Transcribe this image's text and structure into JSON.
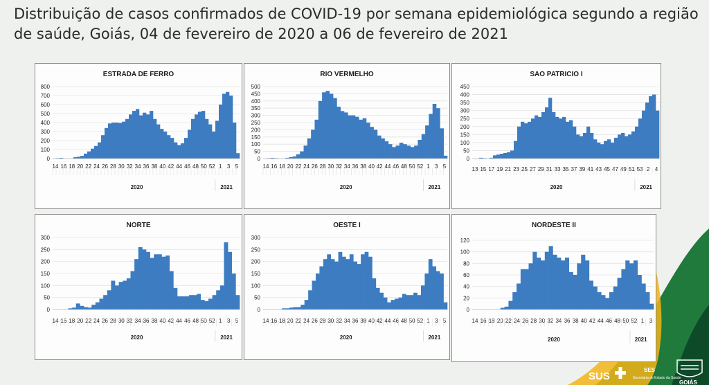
{
  "title": "Distribuição de casos confirmados de COVID-19 por semana epidemiológica segundo a região de saúde, Goiás, 04 de fevereiro de 2020 a 06 de fevereiro de 2021",
  "colors": {
    "bar": "#3d7cc1",
    "grid": "#e3e3e3",
    "axis": "#bdbdbd",
    "text": "#1e1e1e",
    "gold": "#f2b418",
    "green": "#1f7a3c",
    "darkgreen": "#0d4a28"
  },
  "footer": {
    "sus": "SUS",
    "ses": "SES",
    "ses_sub": "Secretaria de Estado da Saúde",
    "gov": "GOIÁS"
  },
  "chart_data": [
    {
      "type": "bar",
      "title": "ESTRADA DE FERRO",
      "ylim": [
        0,
        800
      ],
      "yticks": [
        0,
        100,
        200,
        300,
        400,
        500,
        600,
        700,
        800
      ],
      "year_labels": [
        "2020",
        "2021"
      ],
      "week_labels": [
        "14",
        "16",
        "18",
        "20",
        "22",
        "24",
        "26",
        "28",
        "30",
        "32",
        "34",
        "36",
        "38",
        "40",
        "42",
        "44",
        "46",
        "48",
        "50",
        "52",
        "1",
        "3",
        "5"
      ],
      "values": [
        0,
        5,
        8,
        0,
        0,
        0,
        15,
        20,
        30,
        55,
        80,
        110,
        140,
        180,
        260,
        340,
        390,
        400,
        400,
        395,
        410,
        440,
        490,
        530,
        550,
        480,
        510,
        490,
        530,
        440,
        380,
        330,
        300,
        260,
        230,
        180,
        150,
        170,
        230,
        320,
        440,
        490,
        520,
        530,
        440,
        380,
        300,
        420,
        600,
        720,
        740,
        700,
        400,
        60
      ]
    },
    {
      "type": "bar",
      "title": "RIO VERMELHO",
      "ylim": [
        0,
        500
      ],
      "yticks": [
        0,
        50,
        100,
        150,
        200,
        250,
        300,
        350,
        400,
        450,
        500
      ],
      "year_labels": [
        "2020",
        "2021"
      ],
      "week_labels": [
        "14",
        "16",
        "18",
        "20",
        "22",
        "24",
        "26",
        "28",
        "30",
        "32",
        "34",
        "36",
        "38",
        "40",
        "42",
        "44",
        "46",
        "48",
        "50",
        "52",
        "1",
        "3",
        "5"
      ],
      "values": [
        0,
        3,
        5,
        3,
        0,
        0,
        5,
        10,
        15,
        30,
        50,
        90,
        140,
        200,
        270,
        400,
        460,
        470,
        450,
        420,
        360,
        330,
        320,
        300,
        300,
        290,
        270,
        280,
        250,
        220,
        200,
        160,
        140,
        120,
        100,
        80,
        90,
        110,
        100,
        90,
        80,
        90,
        130,
        170,
        230,
        310,
        380,
        350,
        210,
        20
      ]
    },
    {
      "type": "bar",
      "title": "SAO PATRICIO I",
      "ylim": [
        0,
        450
      ],
      "yticks": [
        0,
        50,
        100,
        150,
        200,
        250,
        300,
        350,
        400,
        450
      ],
      "year_labels": [
        "2020",
        "2021"
      ],
      "week_labels": [
        "13",
        "15",
        "17",
        "19",
        "21",
        "23",
        "25",
        "27",
        "29",
        "31",
        "33",
        "35",
        "37",
        "39",
        "41",
        "43",
        "45",
        "47",
        "49",
        "51",
        "53",
        "2",
        "4"
      ],
      "values": [
        0,
        0,
        5,
        3,
        0,
        5,
        20,
        25,
        30,
        35,
        40,
        50,
        110,
        200,
        230,
        220,
        230,
        250,
        270,
        260,
        290,
        320,
        380,
        290,
        260,
        250,
        260,
        230,
        240,
        200,
        150,
        140,
        160,
        200,
        160,
        120,
        100,
        90,
        110,
        120,
        100,
        130,
        150,
        160,
        140,
        150,
        170,
        200,
        250,
        300,
        350,
        390,
        400,
        300
      ]
    },
    {
      "type": "bar",
      "title": "NORTE",
      "ylim": [
        0,
        300
      ],
      "yticks": [
        0,
        50,
        100,
        150,
        200,
        250,
        300
      ],
      "year_labels": [
        "2020",
        "2021"
      ],
      "week_labels": [
        "14",
        "16",
        "18",
        "20",
        "22",
        "24",
        "26",
        "28",
        "30",
        "32",
        "34",
        "36",
        "38",
        "40",
        "42",
        "44",
        "46",
        "48",
        "50",
        "52",
        "1",
        "3",
        "5"
      ],
      "values": [
        0,
        0,
        0,
        0,
        5,
        8,
        25,
        15,
        10,
        8,
        20,
        30,
        45,
        60,
        80,
        120,
        100,
        115,
        120,
        130,
        160,
        210,
        260,
        250,
        240,
        215,
        230,
        230,
        220,
        225,
        160,
        90,
        55,
        55,
        55,
        60,
        60,
        65,
        40,
        35,
        45,
        60,
        80,
        100,
        280,
        240,
        150,
        60
      ]
    },
    {
      "type": "bar",
      "title": "OESTE I",
      "ylim": [
        0,
        300
      ],
      "yticks": [
        0,
        50,
        100,
        150,
        200,
        250,
        300
      ],
      "year_labels": [
        "2020",
        "2021"
      ],
      "week_labels": [
        "14",
        "16",
        "18",
        "20",
        "22",
        "24",
        "26",
        "28",
        "30",
        "32",
        "34",
        "36",
        "38",
        "40",
        "42",
        "44",
        "46",
        "48",
        "50",
        "52",
        "1",
        "3",
        "5"
      ],
      "values": [
        0,
        0,
        0,
        0,
        0,
        5,
        5,
        8,
        10,
        10,
        20,
        40,
        80,
        120,
        150,
        180,
        210,
        230,
        210,
        200,
        240,
        220,
        210,
        230,
        200,
        190,
        230,
        240,
        220,
        130,
        90,
        70,
        50,
        30,
        40,
        45,
        50,
        65,
        60,
        60,
        70,
        60,
        100,
        150,
        210,
        180,
        160,
        150,
        30
      ]
    },
    {
      "type": "bar",
      "title": "NORDESTE II",
      "ylim": [
        0,
        120
      ],
      "yticks": [
        0,
        20,
        40,
        60,
        80,
        100,
        120
      ],
      "year_labels": [
        "2020",
        "2021"
      ],
      "week_labels": [
        "14",
        "16",
        "18",
        "20",
        "22",
        "24",
        "26",
        "28",
        "30",
        "32",
        "34",
        "36",
        "38",
        "40",
        "42",
        "44",
        "46",
        "48",
        "50",
        "52",
        "1",
        "3"
      ],
      "values": [
        0,
        0,
        0,
        0,
        0,
        0,
        0,
        3,
        5,
        15,
        30,
        45,
        70,
        70,
        80,
        100,
        90,
        85,
        100,
        110,
        95,
        90,
        85,
        90,
        65,
        60,
        80,
        95,
        85,
        50,
        40,
        30,
        25,
        20,
        30,
        40,
        55,
        70,
        85,
        80,
        85,
        60,
        45,
        30,
        10
      ]
    }
  ]
}
